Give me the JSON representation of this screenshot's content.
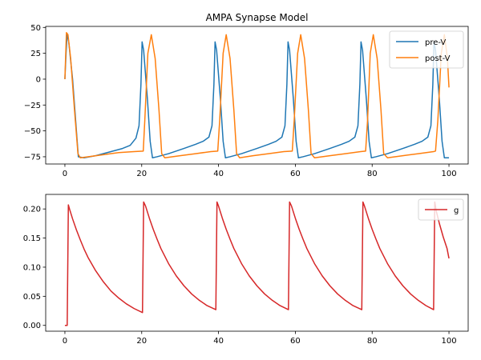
{
  "chart_data": [
    {
      "type": "line",
      "title": "AMPA Synapse Model",
      "xlabel": "",
      "ylabel": "",
      "xlim": [
        -5,
        105
      ],
      "ylim": [
        -82,
        51
      ],
      "xticks": [
        0,
        20,
        40,
        60,
        80,
        100
      ],
      "yticks": [
        -75,
        -50,
        -25,
        0,
        25,
        50
      ],
      "grid": false,
      "legend_position": "top-right",
      "series": [
        {
          "name": "pre-V",
          "color": "#1f77b4",
          "x": [
            0,
            0.3,
            0.6,
            1.0,
            2.0,
            3.0,
            3.5,
            5,
            8,
            12,
            15,
            17,
            18.5,
            19.3,
            19.8,
            20.1,
            20.5,
            21.5,
            22.2,
            22.8,
            24,
            27,
            31,
            34,
            36,
            37.5,
            38.3,
            38.8,
            39.1,
            39.5,
            40.5,
            41.2,
            41.8,
            43,
            46,
            50,
            53,
            55,
            56.5,
            57.3,
            57.8,
            58.1,
            58.5,
            59.5,
            60.2,
            60.8,
            62,
            65,
            69,
            72,
            74,
            75.5,
            76.3,
            76.8,
            77.1,
            77.5,
            78.5,
            79.2,
            79.8,
            81,
            84,
            88,
            91,
            93,
            94.5,
            95.3,
            95.8,
            96.1,
            96.5,
            97.5,
            98.2,
            98.8,
            100
          ],
          "y": [
            0,
            25,
            44,
            36,
            0,
            -50,
            -75,
            -76,
            -74,
            -70,
            -67,
            -64,
            -57,
            -45,
            -5,
            36,
            28,
            -20,
            -60,
            -76,
            -75,
            -72,
            -67,
            -63,
            -60,
            -56,
            -45,
            -5,
            36,
            28,
            -20,
            -60,
            -76,
            -75,
            -72,
            -67,
            -63,
            -60,
            -56,
            -45,
            -5,
            36,
            28,
            -20,
            -60,
            -76,
            -75,
            -72,
            -67,
            -63,
            -60,
            -56,
            -45,
            -5,
            36,
            28,
            -20,
            -60,
            -76,
            -75,
            -72,
            -67,
            -63,
            -60,
            -56,
            -45,
            -5,
            36,
            28,
            -20,
            -60,
            -76,
            -76
          ]
        },
        {
          "name": "post-V",
          "color": "#ff7f0e",
          "x": [
            0,
            0.4,
            0.8,
            1.5,
            2.5,
            3.4,
            4,
            6,
            10,
            14,
            18,
            20.4,
            20.8,
            21.6,
            22.5,
            23.5,
            24.5,
            25.2,
            26,
            30,
            34,
            38,
            39.8,
            40.3,
            41.2,
            42,
            43,
            44,
            44.7,
            45.5,
            49,
            53,
            57,
            59.2,
            59.7,
            60.6,
            61.4,
            62.4,
            63.4,
            64.1,
            65,
            69,
            73,
            77,
            78.3,
            78.8,
            79.5,
            80.3,
            81.3,
            82.3,
            83,
            84,
            88,
            92,
            96,
            96.5,
            97.1,
            98,
            98.8,
            99.6,
            100
          ],
          "y": [
            0,
            45,
            43,
            20,
            -30,
            -72,
            -76,
            -75,
            -73,
            -71,
            -70,
            -69.5,
            -40,
            25,
            43,
            20,
            -30,
            -72,
            -76,
            -74,
            -72,
            -70,
            -69.5,
            -40,
            25,
            43,
            20,
            -30,
            -72,
            -76,
            -74,
            -72,
            -70,
            -69.5,
            -40,
            25,
            43,
            20,
            -30,
            -72,
            -76,
            -74,
            -72,
            -70,
            -69.5,
            -40,
            25,
            43,
            20,
            -30,
            -72,
            -76,
            -74,
            -72,
            -70,
            -69.5,
            -40,
            25,
            43,
            20,
            -8
          ]
        }
      ]
    },
    {
      "type": "line",
      "title": "",
      "xlabel": "",
      "ylabel": "",
      "xlim": [
        -5,
        105
      ],
      "ylim": [
        -0.01,
        0.225
      ],
      "xticks": [
        0,
        20,
        40,
        60,
        80,
        100
      ],
      "yticks": [
        0.0,
        0.05,
        0.1,
        0.15,
        0.2
      ],
      "ytick_labels": [
        "0.00",
        "0.05",
        "0.10",
        "0.15",
        "0.20"
      ],
      "grid": false,
      "legend_position": "top-right",
      "series": [
        {
          "name": "g",
          "color": "#d62728",
          "x": [
            0,
            0.6,
            0.9,
            1.2,
            2,
            3,
            4,
            5,
            6,
            8,
            10,
            12,
            14,
            16,
            18,
            20.2,
            20.5,
            21,
            22,
            23,
            24,
            25,
            27,
            29,
            31,
            33,
            35,
            37,
            39.3,
            39.6,
            40,
            41,
            42,
            43,
            44,
            46,
            48,
            50,
            52,
            54,
            56,
            58.2,
            58.5,
            59,
            60,
            61,
            62,
            63,
            65,
            67,
            69,
            71,
            73,
            75,
            77.3,
            77.6,
            78,
            79,
            80,
            81,
            82,
            84,
            86,
            88,
            90,
            92,
            94,
            96.0,
            96.3,
            96.7,
            97.5,
            98.5,
            99.5,
            100
          ],
          "y": [
            0,
            0,
            0.207,
            0.2,
            0.183,
            0.164,
            0.147,
            0.131,
            0.117,
            0.094,
            0.075,
            0.059,
            0.047,
            0.037,
            0.029,
            0.022,
            0.212,
            0.205,
            0.184,
            0.165,
            0.148,
            0.132,
            0.106,
            0.085,
            0.068,
            0.054,
            0.043,
            0.034,
            0.027,
            0.212,
            0.205,
            0.184,
            0.165,
            0.148,
            0.132,
            0.106,
            0.085,
            0.068,
            0.054,
            0.043,
            0.034,
            0.027,
            0.212,
            0.205,
            0.184,
            0.165,
            0.148,
            0.132,
            0.106,
            0.085,
            0.068,
            0.054,
            0.043,
            0.034,
            0.027,
            0.212,
            0.205,
            0.184,
            0.165,
            0.148,
            0.132,
            0.106,
            0.085,
            0.068,
            0.054,
            0.043,
            0.034,
            0.027,
            0.212,
            0.196,
            0.175,
            0.152,
            0.132,
            0.115
          ]
        }
      ]
    }
  ]
}
